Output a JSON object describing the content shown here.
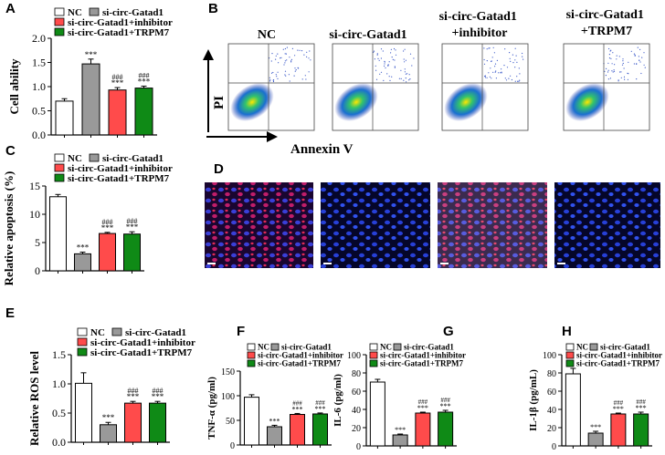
{
  "panel_letters": [
    "A",
    "B",
    "C",
    "D",
    "E",
    "F",
    "G",
    "H"
  ],
  "legend_labels": {
    "nc": "NC",
    "si": "si-circ-Gatad1",
    "inh": "si-circ-Gatad1+inhibitor",
    "trpm": "si-circ-Gatad1+TRPM7"
  },
  "colors": {
    "nc": "#ffffff",
    "si": "#999999",
    "inh": "#ff4b4b",
    "trpm": "#0f8a16"
  },
  "sig_top": "***",
  "sig_hash": "###",
  "flow": {
    "titles": [
      "NC",
      "si-circ-Gatad1",
      "si-circ-Gatad1\n+inhibitor",
      "si-circ-Gatad1\n+TRPM7"
    ],
    "y_axis": "PI",
    "x_axis": "Annexin V"
  },
  "chart_data": [
    {
      "id": "A",
      "type": "bar",
      "ylabel": "Cell ability",
      "ylim": [
        0,
        2.0
      ],
      "yticks": [
        "0.0",
        "0.5",
        "1.0",
        "1.5",
        "2.0"
      ],
      "categories": [
        "NC",
        "si-circ-Gatad1",
        "si-circ-Gatad1+inhibitor",
        "si-circ-Gatad1+TRPM7"
      ],
      "values": [
        0.7,
        1.47,
        0.93,
        0.97
      ],
      "errors": [
        0.05,
        0.1,
        0.05,
        0.04
      ]
    },
    {
      "id": "C",
      "type": "bar",
      "ylabel": "Relative apoptosis (%)",
      "ylim": [
        0,
        15
      ],
      "yticks": [
        "0",
        "5",
        "10",
        "15"
      ],
      "categories": [
        "NC",
        "si-circ-Gatad1",
        "si-circ-Gatad1+inhibitor",
        "si-circ-Gatad1+TRPM7"
      ],
      "values": [
        13.1,
        3.0,
        6.6,
        6.5
      ],
      "errors": [
        0.4,
        0.3,
        0.2,
        0.4
      ]
    },
    {
      "id": "E",
      "type": "bar",
      "ylabel": "Relative ROS level",
      "ylim": [
        0,
        1.5
      ],
      "yticks": [
        "0.0",
        "0.5",
        "1.0",
        "1.5"
      ],
      "categories": [
        "NC",
        "si-circ-Gatad1",
        "si-circ-Gatad1+inhibitor",
        "si-circ-Gatad1+TRPM7"
      ],
      "values": [
        1.01,
        0.3,
        0.67,
        0.67
      ],
      "errors": [
        0.18,
        0.04,
        0.03,
        0.03
      ]
    },
    {
      "id": "F",
      "type": "bar",
      "ylabel": "TNF-α (pg/ml)",
      "ylim": [
        0,
        150
      ],
      "yticks": [
        "0",
        "50",
        "100",
        "150"
      ],
      "categories": [
        "NC",
        "si-circ-Gatad1",
        "si-circ-Gatad1+inhibitor",
        "si-circ-Gatad1+TRPM7"
      ],
      "values": [
        97,
        37,
        62,
        63
      ],
      "errors": [
        5,
        3,
        2,
        2
      ]
    },
    {
      "id": "G",
      "type": "bar",
      "ylabel": "IL-6 (pg/ml)",
      "ylim": [
        0,
        100
      ],
      "yticks": [
        "0",
        "20",
        "40",
        "60",
        "80",
        "100"
      ],
      "categories": [
        "NC",
        "si-circ-Gatad1",
        "si-circ-Gatad1+inhibitor",
        "si-circ-Gatad1+TRPM7"
      ],
      "values": [
        70,
        12,
        36,
        37
      ],
      "errors": [
        3,
        1,
        1,
        2
      ]
    },
    {
      "id": "H",
      "type": "bar",
      "ylabel": "IL-1β (pg/mL)",
      "ylim": [
        0,
        100
      ],
      "yticks": [
        "0",
        "20",
        "40",
        "60",
        "80",
        "100"
      ],
      "categories": [
        "NC",
        "si-circ-Gatad1",
        "si-circ-Gatad1+inhibitor",
        "si-circ-Gatad1+TRPM7"
      ],
      "values": [
        79,
        14,
        35,
        35
      ],
      "errors": [
        6,
        2,
        1,
        2
      ]
    }
  ]
}
